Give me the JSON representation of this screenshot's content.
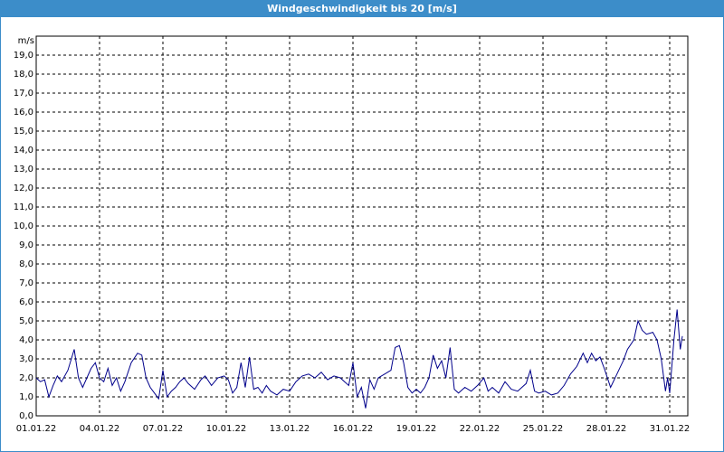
{
  "chart_data": {
    "type": "line",
    "title": "Windgeschwindigkeit bis 20 [m/s]",
    "y_label": "m/s",
    "x": [
      0.0,
      0.2,
      0.4,
      0.6,
      0.8,
      1.0,
      1.2,
      1.5,
      1.8,
      2.0,
      2.2,
      2.4,
      2.6,
      2.8,
      3.0,
      3.2,
      3.4,
      3.6,
      3.8,
      4.0,
      4.2,
      4.5,
      4.8,
      5.0,
      5.2,
      5.4,
      5.6,
      5.8,
      6.0,
      6.2,
      6.4,
      6.6,
      6.8,
      7.0,
      7.2,
      7.5,
      7.8,
      8.0,
      8.3,
      8.6,
      8.9,
      9.1,
      9.3,
      9.5,
      9.7,
      9.9,
      10.1,
      10.3,
      10.5,
      10.7,
      10.9,
      11.1,
      11.4,
      11.7,
      12.0,
      12.3,
      12.6,
      12.9,
      13.2,
      13.5,
      13.8,
      14.1,
      14.4,
      14.6,
      14.8,
      15.0,
      15.2,
      15.4,
      15.6,
      15.8,
      16.0,
      16.2,
      16.5,
      16.8,
      17.0,
      17.2,
      17.4,
      17.6,
      17.8,
      18.0,
      18.2,
      18.4,
      18.6,
      18.8,
      19.0,
      19.2,
      19.4,
      19.6,
      19.8,
      20.0,
      20.3,
      20.6,
      20.9,
      21.2,
      21.4,
      21.6,
      21.9,
      22.2,
      22.5,
      22.8,
      23.0,
      23.2,
      23.4,
      23.6,
      23.8,
      24.1,
      24.4,
      24.7,
      25.0,
      25.3,
      25.6,
      25.9,
      26.1,
      26.3,
      26.5,
      26.7,
      26.9,
      27.2,
      27.5,
      27.8,
      28.0,
      28.3,
      28.5,
      28.7,
      28.9,
      29.2,
      29.4,
      29.6,
      29.8,
      29.9,
      30.0,
      30.2,
      30.35,
      30.5,
      30.6
    ],
    "series": [
      {
        "color": "#00008b",
        "values": [
          2.0,
          1.8,
          1.9,
          1.0,
          1.6,
          2.1,
          1.8,
          2.4,
          3.5,
          2.0,
          1.5,
          2.0,
          2.5,
          2.8,
          2.0,
          1.8,
          2.5,
          1.6,
          2.0,
          1.3,
          1.8,
          2.8,
          3.3,
          3.2,
          2.0,
          1.5,
          1.2,
          0.9,
          2.4,
          1.0,
          1.3,
          1.5,
          1.8,
          2.0,
          1.7,
          1.4,
          1.9,
          2.1,
          1.6,
          2.0,
          2.1,
          1.9,
          1.2,
          1.5,
          2.8,
          1.5,
          3.1,
          1.4,
          1.5,
          1.2,
          1.6,
          1.3,
          1.1,
          1.4,
          1.3,
          1.8,
          2.1,
          2.2,
          2.0,
          2.3,
          1.9,
          2.1,
          2.0,
          1.8,
          1.6,
          2.8,
          1.0,
          1.5,
          0.4,
          1.9,
          1.4,
          2.0,
          2.2,
          2.4,
          3.6,
          3.7,
          2.8,
          1.5,
          1.2,
          1.4,
          1.2,
          1.5,
          2.0,
          3.2,
          2.5,
          2.9,
          2.0,
          3.6,
          1.4,
          1.2,
          1.5,
          1.3,
          1.6,
          2.0,
          1.3,
          1.5,
          1.2,
          1.8,
          1.4,
          1.3,
          1.5,
          1.7,
          2.4,
          1.3,
          1.2,
          1.3,
          1.1,
          1.2,
          1.6,
          2.2,
          2.6,
          3.3,
          2.8,
          3.3,
          2.9,
          3.1,
          2.5,
          1.5,
          2.2,
          2.9,
          3.5,
          4.0,
          5.0,
          4.5,
          4.3,
          4.4,
          4.0,
          3.0,
          1.3,
          2.0,
          1.2,
          4.0,
          5.6,
          3.5,
          4.2
        ]
      }
    ],
    "xlim": [
      0,
      30.857
    ],
    "ylim": [
      0,
      20
    ],
    "grid": true,
    "xticks": [
      {
        "value": 0,
        "label": "01.01.22"
      },
      {
        "value": 3,
        "label": "04.01.22"
      },
      {
        "value": 6,
        "label": "07.01.22"
      },
      {
        "value": 9,
        "label": "10.01.22"
      },
      {
        "value": 12,
        "label": "13.01.22"
      },
      {
        "value": 15,
        "label": "16.01.22"
      },
      {
        "value": 18,
        "label": "19.01.22"
      },
      {
        "value": 21,
        "label": "22.01.22"
      },
      {
        "value": 24,
        "label": "25.01.22"
      },
      {
        "value": 27,
        "label": "28.01.22"
      },
      {
        "value": 30,
        "label": "31.01.22"
      }
    ],
    "yticks": [
      {
        "value": 0,
        "label": "0,0"
      },
      {
        "value": 1,
        "label": "1,0"
      },
      {
        "value": 2,
        "label": "2,0"
      },
      {
        "value": 3,
        "label": "3,0"
      },
      {
        "value": 4,
        "label": "4,0"
      },
      {
        "value": 5,
        "label": "5,0"
      },
      {
        "value": 6,
        "label": "6,0"
      },
      {
        "value": 7,
        "label": "7,0"
      },
      {
        "value": 8,
        "label": "8,0"
      },
      {
        "value": 9,
        "label": "9,0"
      },
      {
        "value": 10,
        "label": "10,0"
      },
      {
        "value": 11,
        "label": "11,0"
      },
      {
        "value": 12,
        "label": "12,0"
      },
      {
        "value": 13,
        "label": "13,0"
      },
      {
        "value": 14,
        "label": "14,0"
      },
      {
        "value": 15,
        "label": "15,0"
      },
      {
        "value": 16,
        "label": "16,0"
      },
      {
        "value": 17,
        "label": "17,0"
      },
      {
        "value": 18,
        "label": "18,0"
      },
      {
        "value": 19,
        "label": "19,0"
      }
    ]
  }
}
